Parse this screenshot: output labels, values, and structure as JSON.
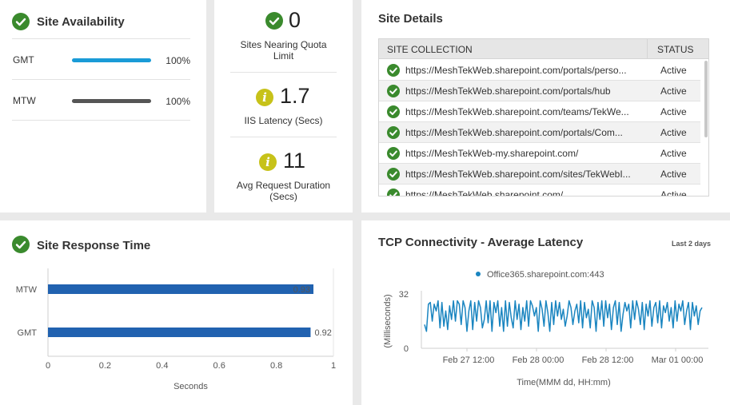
{
  "availability": {
    "title": "Site Availability",
    "rows": [
      {
        "label": "GMT",
        "percent": "100%",
        "value": 1.0,
        "color": "#1a9bd7"
      },
      {
        "label": "MTW",
        "percent": "100%",
        "value": 1.0,
        "color": "#555555"
      }
    ]
  },
  "metrics": [
    {
      "value": "0",
      "label": "Sites Nearing Quota Limit",
      "icon": "check-icon"
    },
    {
      "value": "1.7",
      "label": "IIS Latency (Secs)",
      "icon": "info-icon"
    },
    {
      "value": "11",
      "label": "Avg Request Duration (Secs)",
      "icon": "info-icon"
    }
  ],
  "site_details": {
    "title": "Site Details",
    "columns": [
      "SITE COLLECTION",
      "STATUS"
    ],
    "rows": [
      {
        "url": "https://MeshTekWeb.sharepoint.com/portals/perso...",
        "status": "Active"
      },
      {
        "url": "https://MeshTekWeb.sharepoint.com/portals/hub",
        "status": "Active"
      },
      {
        "url": "https://MeshTekWeb.sharepoint.com/teams/TekWe...",
        "status": "Active"
      },
      {
        "url": "https://MeshTekWeb.sharepoint.com/portals/Com...",
        "status": "Active"
      },
      {
        "url": "https://MeshTekWeb-my.sharepoint.com/",
        "status": "Active"
      },
      {
        "url": "https://MeshTekWeb.sharepoint.com/sites/TekWebI...",
        "status": "Active"
      },
      {
        "url": "https://MeshTekWeb.sharepoint.com/",
        "status": "Active"
      }
    ]
  },
  "response_time": {
    "title": "Site Response Time",
    "xlabel": "Seconds"
  },
  "tcp": {
    "title": "TCP Connectivity - Average Latency",
    "range_label": "Last 2 days",
    "legend": "Office365.sharepoint.com:443",
    "xlabel": "Time(MMM dd, HH:mm)",
    "ylabel": "(Milliseconds)"
  },
  "chart_data": [
    {
      "type": "bar",
      "orientation": "horizontal",
      "categories": [
        "MTW",
        "GMT"
      ],
      "values": [
        0.93,
        0.92
      ],
      "value_labels": [
        "0.93",
        "0.92"
      ],
      "xlim": [
        0,
        1
      ],
      "xticks": [
        "0",
        "0.2",
        "0.4",
        "0.6",
        "0.8",
        "1"
      ],
      "xlabel": "Seconds",
      "color": "#2162b0"
    },
    {
      "type": "line",
      "series": [
        {
          "name": "Office365.sharepoint.com:443",
          "color": "#1a85c0",
          "values": [
            14,
            10,
            26,
            27,
            16,
            26,
            22,
            28,
            12,
            27,
            13,
            22,
            11,
            25,
            17,
            28,
            16,
            28,
            26,
            14,
            28,
            24,
            10,
            22,
            28,
            11,
            27,
            16,
            28,
            24,
            12,
            17,
            28,
            15,
            28,
            10,
            27,
            21,
            28,
            13,
            24,
            10,
            28,
            13,
            27,
            18,
            12,
            28,
            17,
            26,
            11,
            24,
            16,
            28,
            13,
            28,
            25,
            19,
            24,
            10,
            28,
            23,
            13,
            28,
            21,
            10,
            27,
            14,
            28,
            19,
            27,
            17,
            23,
            13,
            19,
            28,
            24,
            14,
            22,
            26,
            15,
            28,
            12,
            27,
            18,
            23,
            12,
            28,
            24,
            10,
            27,
            17,
            28,
            13,
            28,
            18,
            26,
            11,
            24,
            28,
            14,
            27,
            10,
            20,
            27,
            22,
            26,
            12,
            28,
            17,
            28,
            23,
            14,
            27,
            11,
            26,
            19,
            28,
            13,
            24,
            27,
            15,
            28,
            12,
            25,
            21,
            27,
            16,
            24,
            12,
            28,
            16,
            26,
            22,
            28,
            14,
            22,
            27,
            11,
            27,
            19,
            25,
            14,
            22,
            24
          ]
        }
      ],
      "yticks": [
        "0",
        "32"
      ],
      "ylim": [
        0,
        32
      ],
      "xticks": [
        "Feb 27 12:00",
        "Feb 28 00:00",
        "Feb 28 12:00",
        "Mar 01 00:00"
      ],
      "xlabel": "Time(MMM dd, HH:mm)",
      "ylabel": "(Milliseconds)"
    }
  ]
}
